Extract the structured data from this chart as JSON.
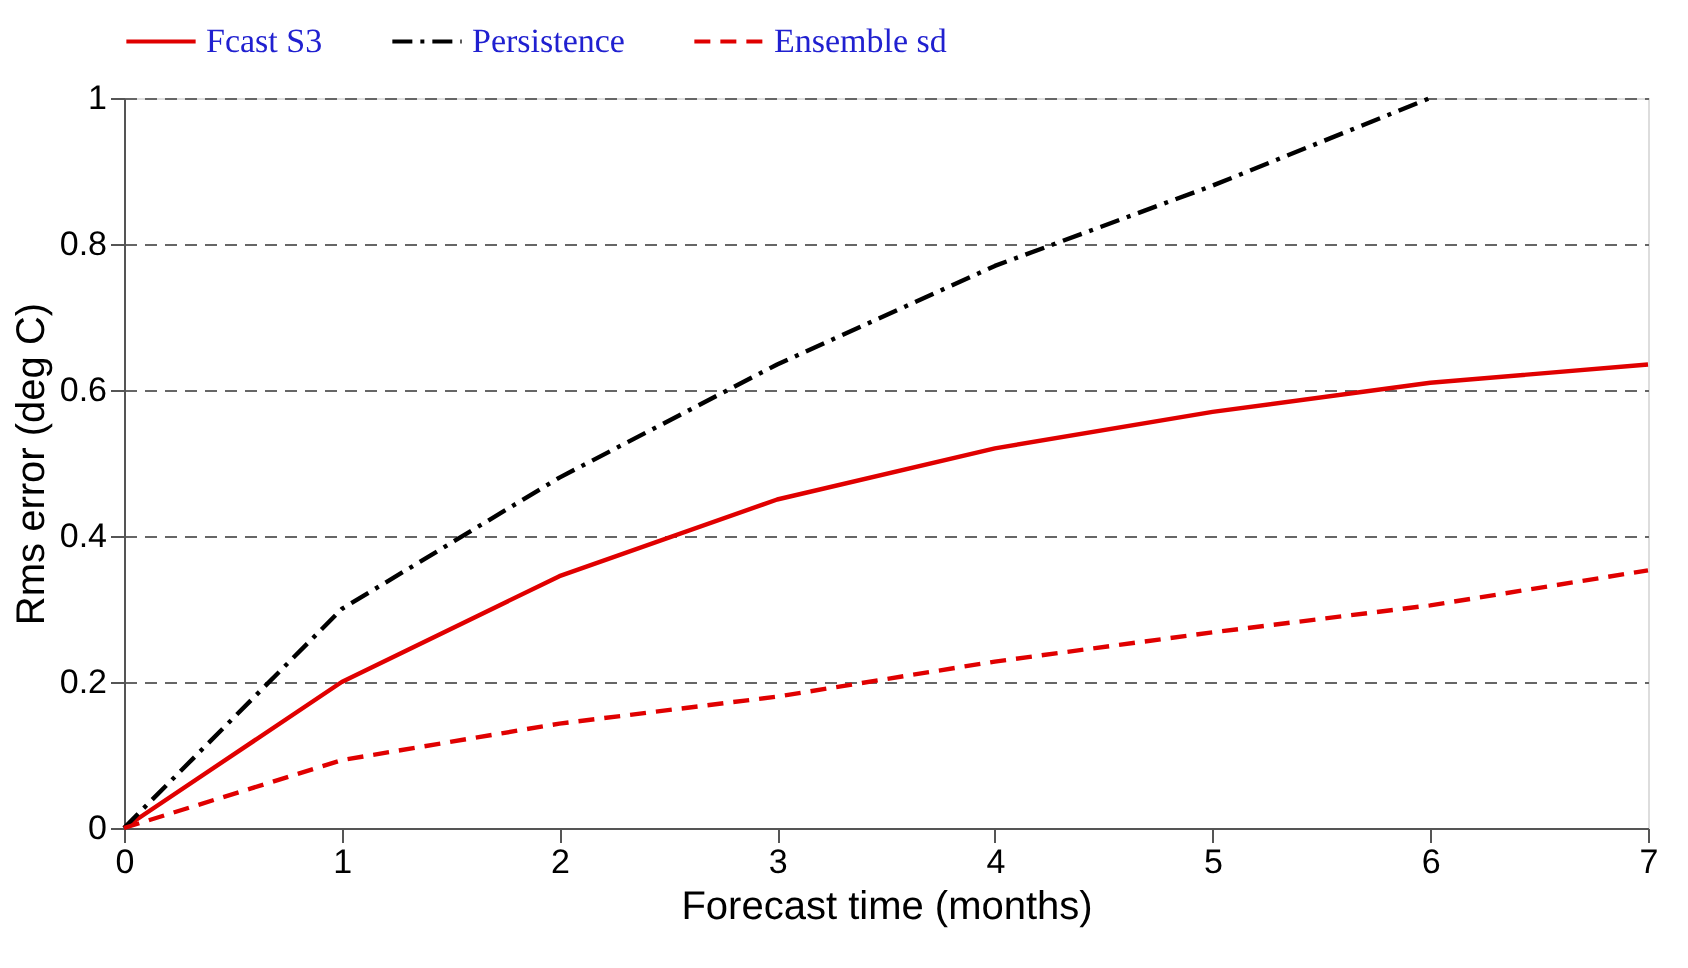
{
  "chart_data": {
    "type": "line",
    "xlabel": "Forecast time (months)",
    "ylabel": "Rms error (deg C)",
    "x": [
      0,
      1,
      2,
      3,
      4,
      5,
      6,
      7
    ],
    "series": [
      {
        "name": "Fcast S3",
        "color": "#e00000",
        "line_style": "solid",
        "values": [
          0,
          0.2,
          0.345,
          0.45,
          0.52,
          0.57,
          0.61,
          0.635
        ]
      },
      {
        "name": "Persistence",
        "color": "#000000",
        "line_style": "dashdot",
        "x": [
          0,
          1,
          2,
          3,
          4,
          5,
          6
        ],
        "values": [
          0,
          0.3,
          0.48,
          0.635,
          0.77,
          0.88,
          1.0
        ]
      },
      {
        "name": "Ensemble sd",
        "color": "#e00000",
        "line_style": "dashed",
        "values": [
          0,
          0.093,
          0.143,
          0.18,
          0.228,
          0.268,
          0.305,
          0.353
        ]
      }
    ],
    "xlim": [
      0,
      7
    ],
    "xticks": [
      0,
      1,
      2,
      3,
      4,
      5,
      6,
      7
    ],
    "ylim": [
      0,
      1
    ],
    "yticks": [
      0,
      0.2,
      0.4,
      0.6,
      0.8,
      1
    ],
    "grid": "y",
    "legend": "top",
    "marker": "none"
  }
}
